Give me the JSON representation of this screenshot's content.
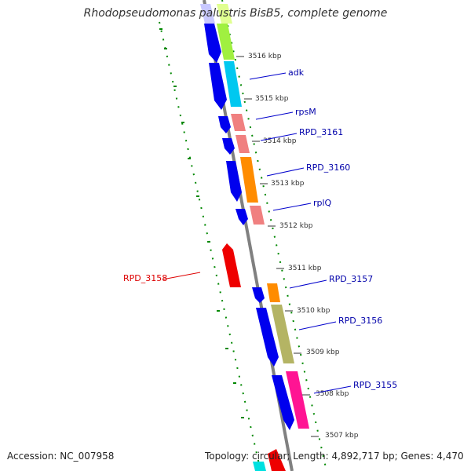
{
  "title": "Rhodopseudomonas palustris BisB5, complete genome",
  "footer": {
    "accession": "Accession: NC_007958",
    "topology": "Topology: circular; Length: 4,892,717 bp; Genes: 4,470"
  },
  "scale_labels": [
    "3516 kbp",
    "3515 kbp",
    "3514 kbp",
    "3513 kbp",
    "3512 kbp",
    "3511 kbp",
    "3510 kbp",
    "3509 kbp",
    "3508 kbp",
    "3507 kbp"
  ],
  "gene_labels": [
    {
      "text": "adk",
      "color": "#0000aa"
    },
    {
      "text": "rpsM",
      "color": "#0000aa"
    },
    {
      "text": "RPD_3161",
      "color": "#0000aa"
    },
    {
      "text": "RPD_3160",
      "color": "#0000aa"
    },
    {
      "text": "rplQ",
      "color": "#0000aa"
    },
    {
      "text": "RPD_3158",
      "color": "#dd0000"
    },
    {
      "text": "RPD_3157",
      "color": "#0000aa"
    },
    {
      "text": "RPD_3156",
      "color": "#0000aa"
    },
    {
      "text": "RPD_3155",
      "color": "#0000aa"
    }
  ],
  "colors": {
    "backbone": "#808080",
    "cds_blue": "#0000ee",
    "reverse_gene": "#ee0000",
    "gc_skew_dashes": "#008800"
  }
}
